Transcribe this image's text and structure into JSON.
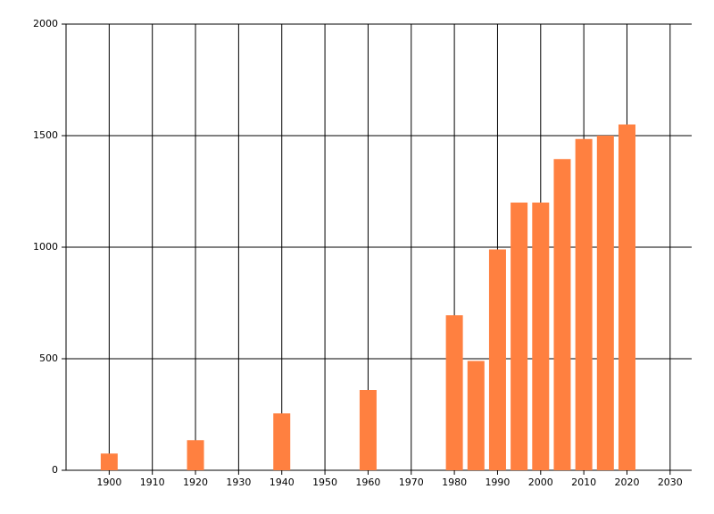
{
  "chart_data": {
    "type": "bar",
    "x": [
      1900,
      1920,
      1940,
      1960,
      1980,
      1985,
      1990,
      1995,
      2000,
      2005,
      2010,
      2015,
      2020
    ],
    "values": [
      75,
      135,
      255,
      360,
      695,
      490,
      990,
      1200,
      1200,
      1395,
      1485,
      1500,
      1550
    ],
    "color": "#ff8040",
    "xlim": [
      1890,
      2035
    ],
    "xticks": [
      1900,
      1910,
      1920,
      1930,
      1940,
      1950,
      1960,
      1970,
      1980,
      1990,
      2000,
      2010,
      2020,
      2030
    ],
    "ylim": [
      0,
      2000
    ],
    "yticks": [
      0,
      500,
      1000,
      1500,
      2000
    ],
    "grid": true
  }
}
